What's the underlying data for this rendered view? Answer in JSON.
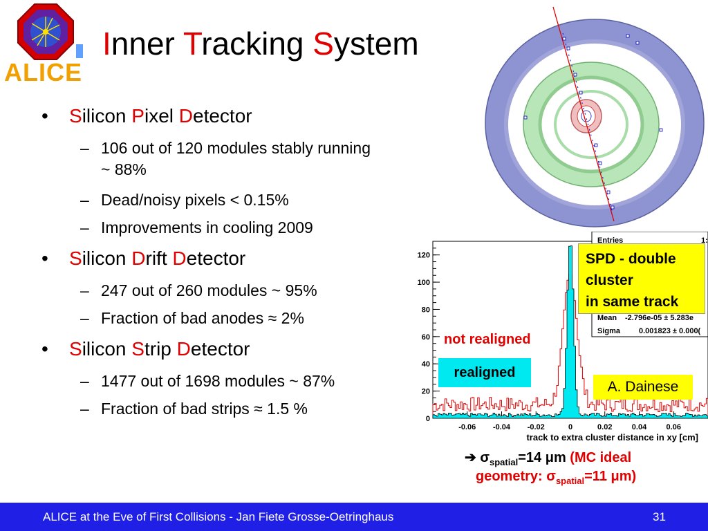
{
  "title": {
    "I": "I",
    "nner": "nner ",
    "T": "T",
    "racking": "racking ",
    "S": "S",
    "ystem": "ystem"
  },
  "logo": {
    "text": "ALICE"
  },
  "bullets": [
    {
      "initial1": "S",
      "rest1": "ilicon ",
      "initial2": "P",
      "rest2": "ixel ",
      "initial3": "D",
      "rest3": "etector",
      "items": [
        "106 out of 120 modules stably running ~ 88%",
        "Dead/noisy pixels < 0.15%",
        "Improvements in cooling 2009"
      ]
    },
    {
      "initial1": "S",
      "rest1": "ilicon ",
      "initial2": "D",
      "rest2": "rift ",
      "initial3": "D",
      "rest3": "etector",
      "items": [
        "247 out of 260 modules ~ 95%",
        "Fraction of bad anodes ≈ 2%"
      ]
    },
    {
      "initial1": "S",
      "rest1": "ilicon ",
      "initial2": "S",
      "rest2": "trip ",
      "initial3": "D",
      "rest3": "etector",
      "items": [
        "1477 out of 1698 modules ~ 87%",
        "Fraction of bad strips ≈ 1.5 %"
      ]
    }
  ],
  "bullet_symbol": "•",
  "dash_symbol": "–",
  "chart_data": {
    "type": "histogram",
    "xlabel": "track to extra cluster distance in xy [cm]",
    "ylabel": "",
    "xlim": [
      -0.08,
      0.08
    ],
    "ylim": [
      0,
      130
    ],
    "x_ticks": [
      "-0.06",
      "-0.04",
      "-0.02",
      "0",
      "0.02",
      "0.04",
      "0.06"
    ],
    "x_tick_values": [
      -0.06,
      -0.04,
      -0.02,
      0,
      0.02,
      0.04,
      0.06
    ],
    "y_ticks": [
      "0",
      "20",
      "40",
      "60",
      "80",
      "100",
      "120"
    ],
    "y_tick_values": [
      0,
      20,
      40,
      60,
      80,
      100,
      120
    ],
    "series": [
      {
        "name": "not realigned",
        "color": "#e00000",
        "peak": 95,
        "sigma": 0.004,
        "background": 12
      },
      {
        "name": "realigned",
        "color": "#00e8f0",
        "peak": 130,
        "sigma": 0.0018,
        "background": 3
      }
    ],
    "stats_box": {
      "rows": [
        {
          "label": "Entries",
          "value": "1:"
        },
        {
          "label": "Mean",
          "value": "-2.796e-05 ± 5.283e"
        },
        {
          "label": "Sigma",
          "value": "0.001823 ± 0.000("
        }
      ]
    }
  },
  "annotations": {
    "not_realigned": "not realigned",
    "realigned": "realigned",
    "spd": [
      "SPD - double",
      "cluster",
      "in same track"
    ],
    "author": "A. Dainese"
  },
  "sigma_line": {
    "arrow": "➔",
    "sigma": "σ",
    "sub": "spatial",
    "value": "=14 ",
    "mu": "μ",
    "unit": "m ",
    "mc_open": "(MC ideal",
    "geometry": "geometry: ",
    "sigma2": "σ",
    "sub2": "spatial",
    "value2": "=11 ",
    "mu2": "μ",
    "unit2": "m)"
  },
  "footer": {
    "text": "ALICE at the Eve of First Collisions  - Jan Fiete Grosse-Oetringhaus",
    "page": "31"
  },
  "colors": {
    "accent_red": "#e00000",
    "footer_blue": "#1f1fe6",
    "cyan": "#00e8f0",
    "yellow": "#ffff00",
    "logo_orange": "#f0a000"
  }
}
